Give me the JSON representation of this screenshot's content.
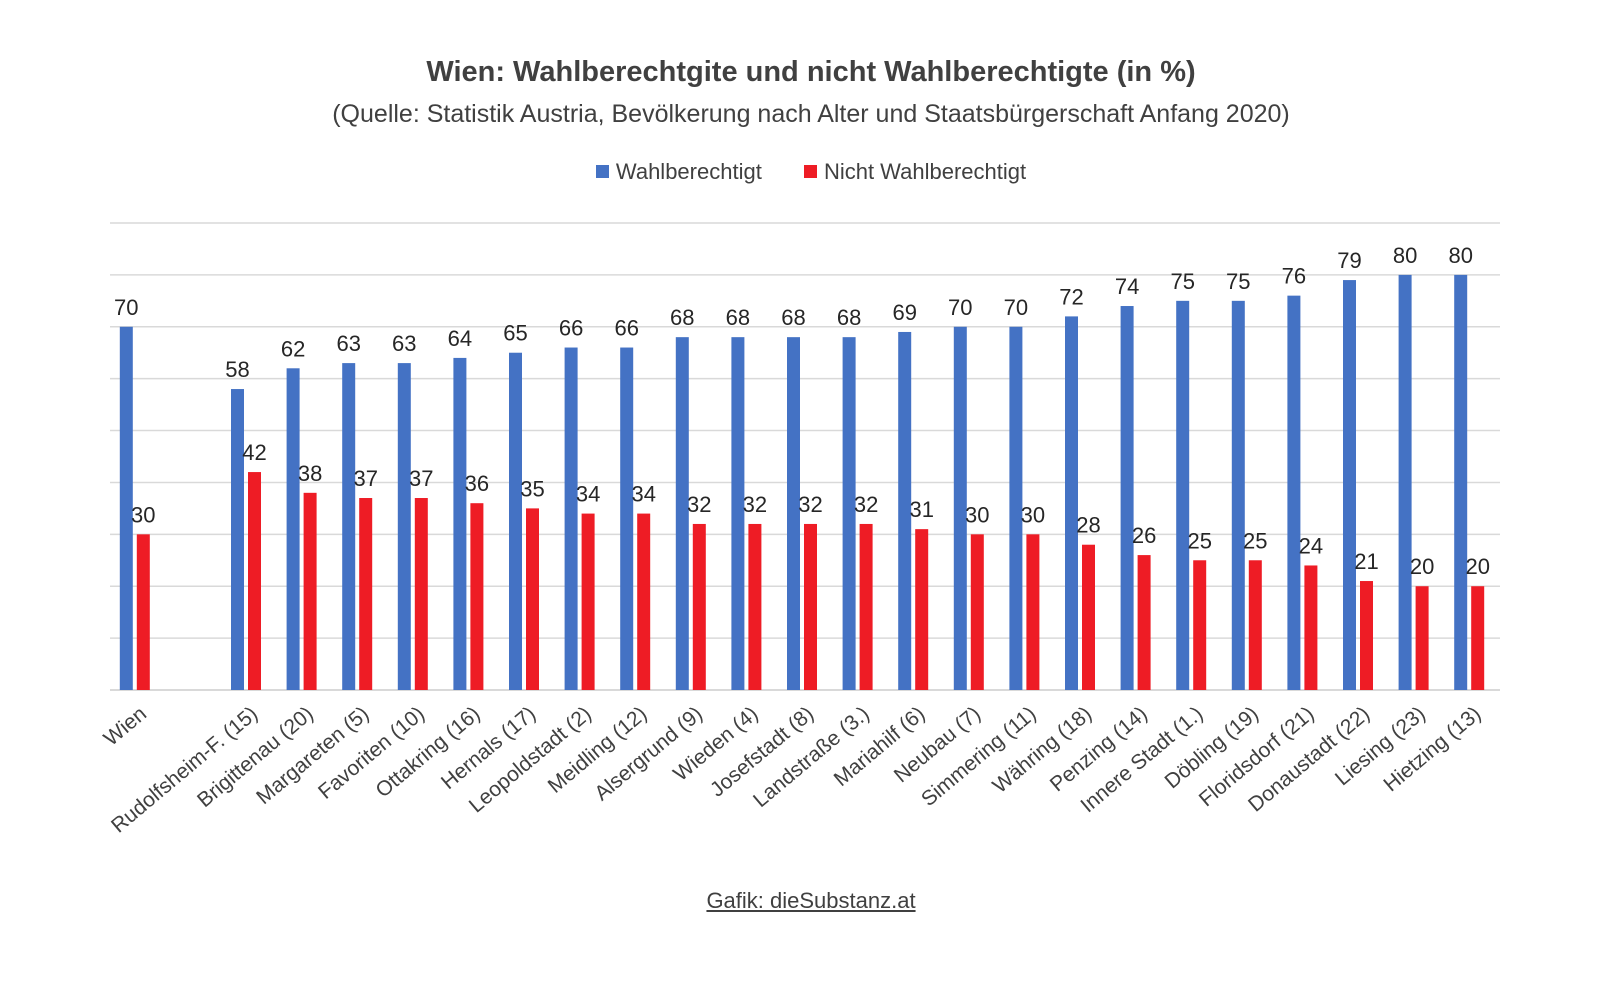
{
  "chart_data": {
    "type": "bar",
    "title": "Wien: Wahlberechtgite und nicht Wahlberechtigte (in %)",
    "subtitle": "(Quelle: Statistik Austria, Bevölkerung nach Alter und Staatsbürgerschaft Anfang 2020)",
    "footer": "Gafik: dieSubstanz.at",
    "legend_position": "top",
    "grid": true,
    "ylim": [
      0,
      90
    ],
    "categories": [
      "Wien",
      "",
      "Rudolfsheim-F. (15)",
      "Brigittenau (20)",
      "Margareten (5)",
      "Favoriten (10)",
      "Ottakring (16)",
      "Hernals (17)",
      "Leopoldstadt (2)",
      "Meidling (12)",
      "Alsergrund (9)",
      "Wieden (4)",
      "Josefstadt (8)",
      "Landstraße (3.)",
      "Mariahilf (6)",
      "Neubau (7)",
      "Simmering (11)",
      "Währing (18)",
      "Penzing (14)",
      "Innere Stadt (1.)",
      "Döbling (19)",
      "Floridsdorf (21)",
      "Donaustadt (22)",
      "Liesing (23)",
      "Hietzing (13)"
    ],
    "series": [
      {
        "name": "Wahlberechtigt",
        "color": "#4472C4",
        "values": [
          70,
          null,
          58,
          62,
          63,
          63,
          64,
          65,
          66,
          66,
          68,
          68,
          68,
          68,
          69,
          70,
          70,
          72,
          74,
          75,
          75,
          76,
          79,
          80,
          80
        ]
      },
      {
        "name": "Nicht Wahlberechtigt",
        "color": "#EE1C25",
        "values": [
          30,
          null,
          42,
          38,
          37,
          37,
          36,
          35,
          34,
          34,
          32,
          32,
          32,
          32,
          31,
          30,
          30,
          28,
          26,
          25,
          25,
          24,
          21,
          20,
          20
        ]
      }
    ]
  }
}
